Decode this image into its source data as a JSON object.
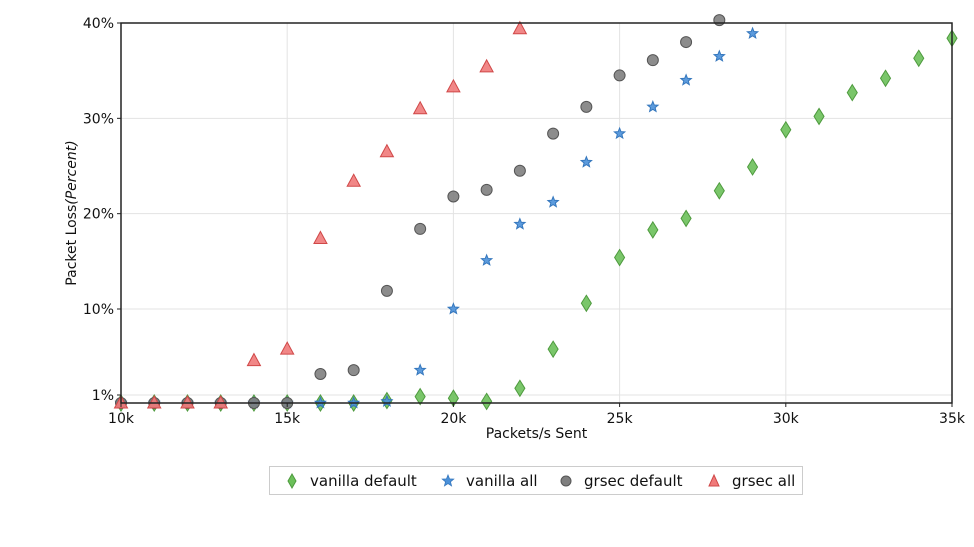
{
  "chart_data": {
    "type": "scatter",
    "xlabel": "Packets/s Sent",
    "ylabel_prefix": "Packet Loss",
    "ylabel_italic": "(Percent)",
    "x_ticks": [
      {
        "value": 10000,
        "label": "10k"
      },
      {
        "value": 15000,
        "label": "15k"
      },
      {
        "value": 20000,
        "label": "20k"
      },
      {
        "value": 25000,
        "label": "25k"
      },
      {
        "value": 30000,
        "label": "30k"
      },
      {
        "value": 35000,
        "label": "35k"
      }
    ],
    "y_ticks": [
      {
        "value": 1,
        "label": "1%"
      },
      {
        "value": 10,
        "label": "10%"
      },
      {
        "value": 20,
        "label": "20%"
      },
      {
        "value": 30,
        "label": "30%"
      },
      {
        "value": 40,
        "label": "40%"
      }
    ],
    "xlim": [
      10000,
      35000
    ],
    "ylim": [
      0,
      40
    ],
    "grid": true,
    "legend_position": "bottom",
    "series": [
      {
        "name": "vanilla default",
        "marker": "diamond",
        "color": "#6cc05a",
        "stroke": "#4e9a3e",
        "points": [
          [
            10000,
            0
          ],
          [
            11000,
            0
          ],
          [
            12000,
            0
          ],
          [
            13000,
            0
          ],
          [
            14000,
            0
          ],
          [
            15000,
            0
          ],
          [
            16000,
            0
          ],
          [
            17000,
            0
          ],
          [
            18000,
            0.3
          ],
          [
            19000,
            0.8
          ],
          [
            20000,
            0.6
          ],
          [
            21000,
            0.2
          ],
          [
            22000,
            1.7
          ],
          [
            23000,
            5.8
          ],
          [
            24000,
            10.6
          ],
          [
            25000,
            15.4
          ],
          [
            26000,
            18.3
          ],
          [
            27000,
            19.5
          ],
          [
            28000,
            22.4
          ],
          [
            29000,
            24.9
          ],
          [
            30000,
            28.8
          ],
          [
            31000,
            30.2
          ],
          [
            32000,
            32.7
          ],
          [
            33000,
            34.2
          ],
          [
            34000,
            36.3
          ],
          [
            35000,
            38.4
          ]
        ]
      },
      {
        "name": "vanilla all",
        "marker": "star",
        "color": "#4a90d9",
        "stroke": "#3577bd",
        "points": [
          [
            10000,
            0
          ],
          [
            11000,
            0
          ],
          [
            12000,
            0
          ],
          [
            13000,
            0
          ],
          [
            14000,
            0
          ],
          [
            15000,
            0
          ],
          [
            16000,
            0
          ],
          [
            17000,
            0
          ],
          [
            18000,
            0.2
          ],
          [
            19000,
            3.6
          ],
          [
            20000,
            10.0
          ],
          [
            21000,
            15.1
          ],
          [
            22000,
            18.9
          ],
          [
            23000,
            21.2
          ],
          [
            24000,
            25.4
          ],
          [
            25000,
            28.4
          ],
          [
            26000,
            31.2
          ],
          [
            27000,
            34.0
          ],
          [
            28000,
            36.5
          ],
          [
            29000,
            38.9
          ]
        ]
      },
      {
        "name": "grsec default",
        "marker": "circle",
        "color": "#7f7f7f",
        "stroke": "#555555",
        "points": [
          [
            10000,
            0
          ],
          [
            11000,
            0
          ],
          [
            12000,
            0
          ],
          [
            13000,
            0
          ],
          [
            14000,
            0
          ],
          [
            15000,
            0
          ],
          [
            16000,
            3.2
          ],
          [
            17000,
            3.6
          ],
          [
            18000,
            11.9
          ],
          [
            19000,
            18.4
          ],
          [
            20000,
            21.8
          ],
          [
            21000,
            22.5
          ],
          [
            22000,
            24.5
          ],
          [
            23000,
            28.4
          ],
          [
            24000,
            31.2
          ],
          [
            25000,
            34.5
          ],
          [
            26000,
            36.1
          ],
          [
            27000,
            38.0
          ],
          [
            28000,
            40.3
          ]
        ]
      },
      {
        "name": "grsec all",
        "marker": "triangle",
        "color": "#f07a7a",
        "stroke": "#d04848",
        "points": [
          [
            10000,
            0
          ],
          [
            11000,
            0
          ],
          [
            12000,
            0
          ],
          [
            13000,
            0
          ],
          [
            14000,
            4.6
          ],
          [
            15000,
            5.8
          ],
          [
            16000,
            17.4
          ],
          [
            17000,
            23.4
          ],
          [
            18000,
            26.5
          ],
          [
            19000,
            31.0
          ],
          [
            20000,
            33.3
          ],
          [
            21000,
            35.4
          ],
          [
            22000,
            39.4
          ]
        ]
      }
    ]
  }
}
